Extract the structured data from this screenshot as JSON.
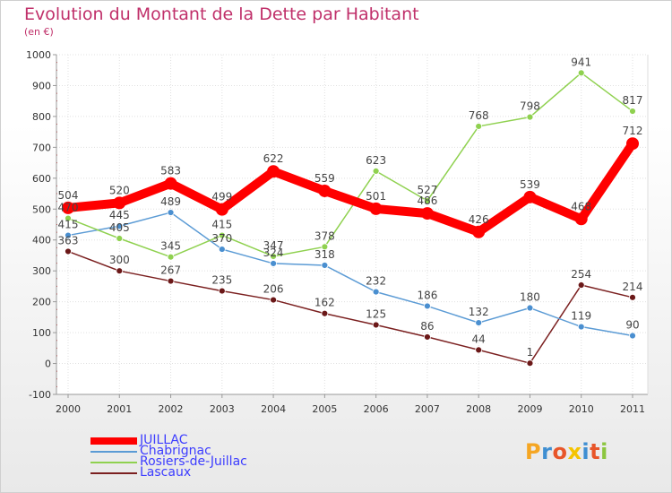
{
  "title": "Evolution du Montant de la Dette par Habitant",
  "unit": "(en €)",
  "logo_text": "Proxiti",
  "chart_data": {
    "type": "line",
    "x": [
      "2000",
      "2001",
      "2002",
      "2003",
      "2004",
      "2005",
      "2006",
      "2007",
      "2008",
      "2009",
      "2010",
      "2011"
    ],
    "ylim": [
      -100,
      1000
    ],
    "yticks": [
      "-100",
      "0",
      "100",
      "200",
      "300",
      "400",
      "500",
      "600",
      "700",
      "800",
      "900",
      "1000"
    ],
    "grid": true,
    "legend_placement": "bottom-left",
    "series": [
      {
        "name": "JUILLAC",
        "color": "#ff0000",
        "labels": [
          "504",
          "520",
          "583",
          "499",
          "622",
          "559",
          "501",
          "486",
          "426",
          "539",
          "468",
          "712"
        ],
        "values": [
          504,
          520,
          583,
          499,
          622,
          559,
          501,
          486,
          426,
          539,
          468,
          712
        ]
      },
      {
        "name": "Chabrignac",
        "color": "#5b9bd5",
        "labels": [
          "415",
          "445",
          "489",
          "370",
          "324",
          "318",
          "232",
          "186",
          "132",
          "180",
          "119",
          "90"
        ],
        "values": [
          415,
          445,
          489,
          370,
          324,
          318,
          232,
          186,
          132,
          180,
          119,
          90
        ]
      },
      {
        "name": "Rosiers-de-Juillac",
        "color": "#8fd14f",
        "labels": [
          "470",
          "405",
          "345",
          "415",
          "347",
          "378",
          "623",
          "527",
          "768",
          "798",
          "941",
          "817"
        ],
        "values": [
          470,
          405,
          345,
          415,
          347,
          378,
          623,
          527,
          768,
          798,
          941,
          817
        ]
      },
      {
        "name": "Lascaux",
        "color": "#7b2020",
        "labels": [
          "363",
          "300",
          "267",
          "235",
          "206",
          "162",
          "125",
          "86",
          "44",
          "1",
          "254",
          "214"
        ],
        "values": [
          363,
          300,
          267,
          235,
          206,
          162,
          125,
          86,
          44,
          1,
          254,
          214
        ]
      }
    ]
  }
}
